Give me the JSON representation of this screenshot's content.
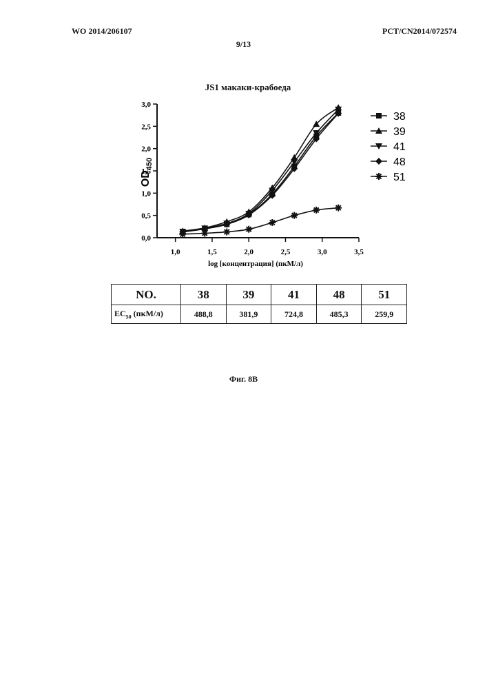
{
  "header": {
    "publication": "WO 2014/206107",
    "application": "PCT/CN2014/072574",
    "page": "9/13"
  },
  "chart_data": {
    "type": "line",
    "title": "JS1 макаки-крабоеда",
    "xlabel": "log [концентрация] (пкМ/л)",
    "ylabel": "OD",
    "ylabel_subscript": "450",
    "xlim": [
      0.75,
      3.5
    ],
    "ylim": [
      0,
      3.0
    ],
    "x_ticks": [
      "1,0",
      "1,5",
      "2,0",
      "2,5",
      "3,0",
      "3,5"
    ],
    "y_ticks": [
      "0,0",
      "0,5",
      "1,0",
      "1,5",
      "2,0",
      "2,5",
      "3,0"
    ],
    "x": [
      1.1,
      1.4,
      1.7,
      2.0,
      2.32,
      2.62,
      2.92,
      3.22
    ],
    "series": [
      {
        "name": "38",
        "marker": "square",
        "values": [
          0.13,
          0.2,
          0.3,
          0.52,
          0.98,
          1.6,
          2.28,
          2.8
        ]
      },
      {
        "name": "39",
        "marker": "triangle-up",
        "values": [
          0.15,
          0.22,
          0.36,
          0.58,
          1.12,
          1.8,
          2.55,
          2.92
        ]
      },
      {
        "name": "41",
        "marker": "triangle-down",
        "values": [
          0.14,
          0.21,
          0.32,
          0.54,
          1.06,
          1.7,
          2.35,
          2.88
        ]
      },
      {
        "name": "48",
        "marker": "diamond",
        "values": [
          0.13,
          0.2,
          0.3,
          0.51,
          0.95,
          1.55,
          2.22,
          2.79
        ]
      },
      {
        "name": "51",
        "marker": "star",
        "values": [
          0.08,
          0.1,
          0.13,
          0.19,
          0.34,
          0.5,
          0.62,
          0.67
        ]
      }
    ],
    "legend_position": "right",
    "grid": false
  },
  "table": {
    "header": [
      "NO.",
      "38",
      "39",
      "41",
      "48",
      "51"
    ],
    "row_label": "EC",
    "row_label_subscript": "50",
    "row_label_unit": " (пкМ/л)",
    "values": [
      "488,8",
      "381,9",
      "724,8",
      "485,3",
      "259,9"
    ]
  },
  "caption": "Фиг. 8B",
  "colors": {
    "ink": "#111111",
    "background": "#ffffff"
  }
}
